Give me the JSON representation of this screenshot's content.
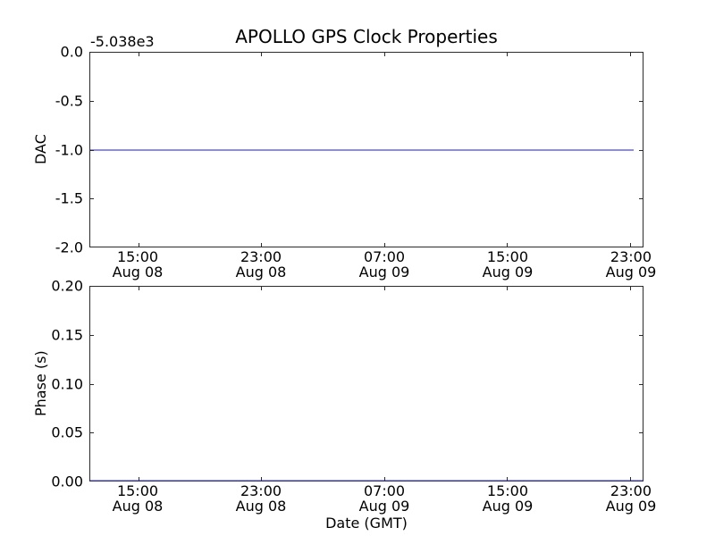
{
  "figure": {
    "title": "APOLLO GPS Clock Properties",
    "offset_text": "-5.038e3",
    "xlabel": "Date (GMT)",
    "background_color": "#ffffff",
    "line_color": "#8c8cee",
    "spine_color": "#2b2b2b"
  },
  "chart_data": [
    {
      "type": "line",
      "subplot": "top",
      "title": "APOLLO GPS Clock Properties",
      "ylabel": "DAC",
      "y_axis_offset_text": "-5.038e3",
      "ylim": [
        -2.0,
        0.0
      ],
      "y_tick_labels": [
        "0.0",
        "-0.5",
        "-1.0",
        "-1.5",
        "-2.0"
      ],
      "x_tick_labels": [
        {
          "time": "15:00",
          "date": "Aug 08"
        },
        {
          "time": "23:00",
          "date": "Aug 08"
        },
        {
          "time": "07:00",
          "date": "Aug 09"
        },
        {
          "time": "15:00",
          "date": "Aug 09"
        },
        {
          "time": "23:00",
          "date": "Aug 09"
        }
      ],
      "grid": false,
      "series": [
        {
          "name": "DAC",
          "color": "#0000ff",
          "shape": "constant horizontal line spanning full time range",
          "value": -1.0
        }
      ]
    },
    {
      "type": "line",
      "subplot": "bottom",
      "ylabel": "Phase (s)",
      "xlabel": "Date (GMT)",
      "ylim": [
        0.0,
        0.2
      ],
      "y_tick_labels": [
        "0.20",
        "0.15",
        "0.10",
        "0.05",
        "0.00"
      ],
      "x_tick_labels": [
        {
          "time": "15:00",
          "date": "Aug 08"
        },
        {
          "time": "23:00",
          "date": "Aug 08"
        },
        {
          "time": "07:00",
          "date": "Aug 09"
        },
        {
          "time": "15:00",
          "date": "Aug 09"
        },
        {
          "time": "23:00",
          "date": "Aug 09"
        }
      ],
      "grid": false,
      "series": [
        {
          "name": "Phase",
          "color": "#0000ff",
          "shape": "constant horizontal line along the bottom axis",
          "value": 0.0
        }
      ]
    }
  ]
}
